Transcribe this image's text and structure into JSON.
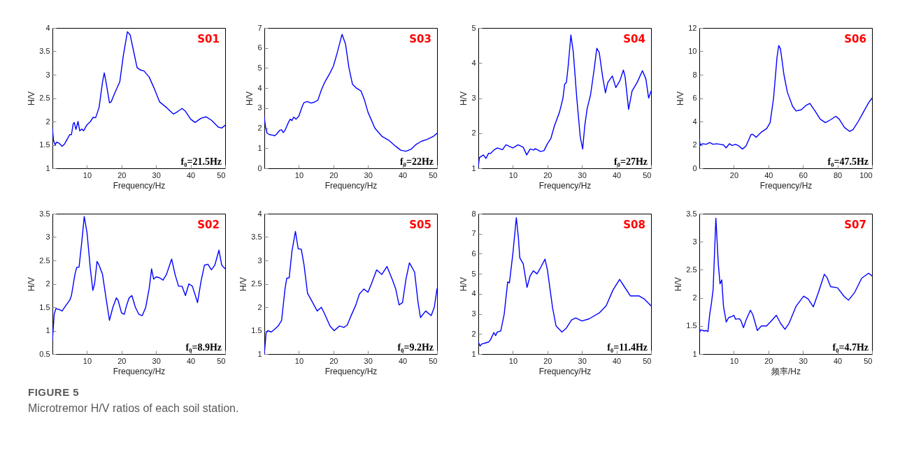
{
  "chart_data": [
    {
      "type": "line",
      "xlabel": "Frequency/Hz",
      "ylabel": "H/V",
      "xlim": [
        0,
        50
      ],
      "xticks": [
        10,
        20,
        30,
        40,
        50
      ],
      "ylim": [
        1,
        4
      ],
      "yticks": [
        1,
        1.5,
        2,
        2.5,
        3,
        3.5,
        4
      ],
      "annotations": [
        "S01",
        "f₀=21.5Hz"
      ],
      "x": [
        0,
        0.3,
        0.8,
        1.2,
        2,
        2.8,
        3.5,
        4.5,
        5,
        5.5,
        6,
        6.3,
        6.8,
        7.4,
        7.9,
        8.5,
        9,
        10,
        11,
        11.8,
        12.5,
        13.5,
        14.5,
        15,
        15.5,
        16.5,
        17,
        18,
        19.5,
        20.5,
        21.7,
        22.5,
        23.5,
        24.5,
        25.5,
        26.5,
        28,
        29.5,
        31,
        33,
        35,
        36,
        37.5,
        38.5,
        40,
        41.3,
        43,
        44.5,
        46,
        48,
        49,
        50
      ],
      "series": [
        {
          "color": "#0000ff",
          "values": [
            1.85,
            1.6,
            1.5,
            1.56,
            1.53,
            1.47,
            1.52,
            1.65,
            1.72,
            1.72,
            1.95,
            1.98,
            1.83,
            2.0,
            1.8,
            1.84,
            1.8,
            1.93,
            2.0,
            2.09,
            2.08,
            2.3,
            2.85,
            3.04,
            2.85,
            2.4,
            2.42,
            2.6,
            2.85,
            3.4,
            3.92,
            3.85,
            3.5,
            3.15,
            3.1,
            3.08,
            2.95,
            2.7,
            2.42,
            2.3,
            2.16,
            2.2,
            2.28,
            2.22,
            2.05,
            1.98,
            2.07,
            2.1,
            2.03,
            1.88,
            1.86,
            1.92
          ]
        }
      ]
    },
    {
      "type": "line",
      "xlabel": "Frequency/Hz",
      "ylabel": "H/V",
      "xlim": [
        0,
        50
      ],
      "xticks": [
        10,
        20,
        30,
        40,
        50
      ],
      "ylim": [
        0,
        7
      ],
      "yticks": [
        0,
        1,
        2,
        3,
        4,
        5,
        6,
        7
      ],
      "annotations": [
        "S03",
        "f₀=22Hz"
      ],
      "x": [
        0,
        0.3,
        0.8,
        1.5,
        2.5,
        3,
        3.5,
        4.5,
        5,
        5.5,
        6,
        7,
        7.5,
        8,
        8.5,
        9.2,
        10,
        11,
        11.5,
        12.5,
        13.5,
        14.5,
        15.5,
        16.5,
        17.5,
        19,
        20,
        21,
        22.5,
        23.5,
        24.5,
        25.5,
        26.5,
        28,
        29,
        30,
        32,
        34,
        36,
        38,
        39.5,
        41,
        42.5,
        44,
        45.5,
        47,
        49,
        50
      ],
      "series": [
        {
          "color": "#0000ff",
          "values": [
            2.55,
            2.1,
            1.75,
            1.68,
            1.65,
            1.62,
            1.7,
            1.9,
            1.92,
            1.78,
            1.9,
            2.3,
            2.45,
            2.38,
            2.55,
            2.45,
            2.6,
            3.1,
            3.28,
            3.33,
            3.25,
            3.3,
            3.4,
            3.9,
            4.3,
            4.75,
            5.1,
            5.7,
            6.68,
            6.2,
            5.0,
            4.2,
            4.02,
            3.85,
            3.4,
            2.8,
            2.0,
            1.6,
            1.4,
            1.1,
            0.9,
            0.85,
            0.95,
            1.2,
            1.35,
            1.43,
            1.6,
            1.75
          ]
        }
      ]
    },
    {
      "type": "line",
      "xlabel": "Frequency/Hz",
      "ylabel": "H/V",
      "xlim": [
        0,
        50
      ],
      "xticks": [
        10,
        20,
        30,
        40,
        50
      ],
      "ylim": [
        1,
        5
      ],
      "yticks": [
        1,
        2,
        3,
        4,
        5
      ],
      "annotations": [
        "S04",
        "f₀=27Hz"
      ],
      "x": [
        0,
        0.3,
        1,
        1.5,
        2.2,
        3,
        3.5,
        4.5,
        5.5,
        7,
        8,
        10,
        11.5,
        13,
        14,
        15,
        16,
        16.5,
        18,
        19,
        20,
        21,
        22,
        23.5,
        24.5,
        25,
        25.5,
        26,
        26.8,
        27.5,
        28.5,
        29.5,
        30.2,
        30.8,
        31.5,
        32.5,
        33.5,
        34.3,
        35,
        36,
        36.8,
        37.5,
        38.8,
        39.8,
        41,
        42,
        42.5,
        43.5,
        44.5,
        46,
        47.5,
        48.5,
        49.3,
        50
      ],
      "series": [
        {
          "color": "#0000ff",
          "values": [
            1.05,
            1.3,
            1.35,
            1.38,
            1.28,
            1.43,
            1.42,
            1.52,
            1.58,
            1.53,
            1.67,
            1.58,
            1.67,
            1.6,
            1.38,
            1.55,
            1.52,
            1.56,
            1.48,
            1.5,
            1.7,
            1.85,
            2.2,
            2.6,
            3.0,
            3.4,
            3.45,
            3.9,
            4.8,
            4.3,
            3.0,
            1.9,
            1.55,
            2.2,
            2.7,
            3.1,
            3.8,
            4.42,
            4.3,
            3.6,
            3.15,
            3.45,
            3.63,
            3.3,
            3.5,
            3.8,
            3.6,
            2.68,
            3.2,
            3.45,
            3.78,
            3.55,
            3.0,
            3.2
          ]
        }
      ]
    },
    {
      "type": "line",
      "xlabel": "Frequency/Hz",
      "ylabel": "H/V",
      "xlim": [
        0,
        100
      ],
      "xticks": [
        20,
        40,
        60,
        80,
        100
      ],
      "ylim": [
        0,
        12
      ],
      "yticks": [
        0,
        2,
        4,
        6,
        8,
        10,
        12
      ],
      "annotations": [
        "S06",
        "f₀=47.5Hz"
      ],
      "x": [
        0,
        0.5,
        2,
        4,
        6,
        8,
        10,
        12,
        14,
        15.5,
        17.5,
        19,
        21,
        23,
        25,
        27,
        30,
        31,
        33,
        36,
        39,
        41,
        43,
        45,
        46,
        47,
        49,
        51,
        54,
        56,
        59,
        62,
        64,
        67,
        70,
        73,
        76,
        79,
        81,
        84,
        87,
        89,
        92,
        95,
        98,
        100
      ],
      "series": [
        {
          "color": "#0000ff",
          "values": [
            2.5,
            2.0,
            2.1,
            2.05,
            2.2,
            2.05,
            2.1,
            2.05,
            2.0,
            1.75,
            2.1,
            1.95,
            2.05,
            1.9,
            1.65,
            1.9,
            2.9,
            2.9,
            2.65,
            3.1,
            3.4,
            3.9,
            6.0,
            9.5,
            10.5,
            10.2,
            8.0,
            6.5,
            5.3,
            4.9,
            5.0,
            5.4,
            5.55,
            4.9,
            4.2,
            3.9,
            4.15,
            4.45,
            4.2,
            3.5,
            3.15,
            3.3,
            4.0,
            4.8,
            5.6,
            6.0
          ]
        }
      ]
    },
    {
      "type": "line",
      "xlabel": "Frequency/Hz",
      "ylabel": "H/V",
      "xlim": [
        0,
        50
      ],
      "xticks": [
        10,
        20,
        30,
        40,
        50
      ],
      "ylim": [
        0.5,
        3.5
      ],
      "yticks": [
        0.5,
        1,
        1.5,
        2,
        2.5,
        3,
        3.5
      ],
      "annotations": [
        "S02",
        "f₀=8.9Hz"
      ],
      "x": [
        0,
        0.5,
        1,
        2,
        2.8,
        4,
        5,
        5.5,
        6.5,
        7,
        7.7,
        8.5,
        9.2,
        10,
        11,
        11.7,
        12.2,
        12.9,
        13.5,
        14.5,
        15.5,
        16.5,
        17.5,
        18.5,
        19,
        20,
        20.8,
        21.5,
        22.2,
        23,
        24,
        25,
        26,
        27,
        28,
        28.7,
        29.3,
        30,
        31,
        32,
        33,
        34.5,
        35.5,
        36.5,
        37.5,
        38.5,
        39.5,
        40.5,
        42,
        43,
        44,
        45,
        46,
        47,
        48.2,
        49,
        50
      ],
      "series": [
        {
          "color": "#0000ff",
          "values": [
            0.8,
            1.35,
            1.47,
            1.45,
            1.42,
            1.55,
            1.65,
            1.75,
            2.2,
            2.35,
            2.36,
            2.9,
            3.44,
            3.1,
            2.3,
            1.86,
            2.0,
            2.48,
            2.4,
            2.2,
            1.7,
            1.22,
            1.5,
            1.7,
            1.65,
            1.38,
            1.35,
            1.55,
            1.7,
            1.75,
            1.5,
            1.35,
            1.32,
            1.5,
            1.9,
            2.32,
            2.1,
            2.15,
            2.13,
            2.08,
            2.2,
            2.53,
            2.2,
            1.95,
            1.95,
            1.75,
            2.0,
            1.95,
            1.6,
            2.05,
            2.4,
            2.42,
            2.3,
            2.4,
            2.72,
            2.4,
            2.32
          ]
        }
      ]
    },
    {
      "type": "line",
      "xlabel": "Frequency/Hz",
      "ylabel": "H/V",
      "xlim": [
        0,
        50
      ],
      "xticks": [
        10,
        20,
        30,
        40,
        50
      ],
      "ylim": [
        1,
        4
      ],
      "yticks": [
        1,
        1.5,
        2,
        2.5,
        3,
        3.5,
        4
      ],
      "annotations": [
        "S05",
        "f₀=9.2Hz"
      ],
      "x": [
        0,
        0.5,
        1,
        2,
        3,
        4,
        5,
        6,
        6.5,
        7.2,
        8,
        9,
        9.8,
        10.7,
        11.5,
        12.5,
        14,
        15.3,
        16.5,
        17.5,
        19,
        20.2,
        21,
        21.8,
        23,
        24,
        25,
        26.5,
        27.5,
        28.8,
        30,
        31,
        32.5,
        34,
        35.5,
        37,
        38,
        39,
        40,
        41,
        42,
        43.5,
        44.5,
        45.2,
        46.7,
        48.3,
        49.2,
        50
      ],
      "series": [
        {
          "color": "#0000ff",
          "values": [
            1.0,
            1.45,
            1.5,
            1.47,
            1.53,
            1.6,
            1.72,
            2.4,
            2.62,
            2.63,
            3.2,
            3.62,
            3.25,
            3.24,
            2.9,
            2.3,
            2.1,
            1.92,
            2.0,
            1.85,
            1.6,
            1.5,
            1.55,
            1.6,
            1.57,
            1.62,
            1.8,
            2.05,
            2.28,
            2.39,
            2.32,
            2.5,
            2.8,
            2.7,
            2.87,
            2.6,
            2.4,
            2.05,
            2.1,
            2.6,
            2.95,
            2.75,
            2.1,
            1.78,
            1.92,
            1.82,
            2.0,
            2.4
          ]
        }
      ]
    },
    {
      "type": "line",
      "xlabel": "Frequency/Hz",
      "ylabel": "H/V",
      "xlim": [
        0,
        50
      ],
      "xticks": [
        10,
        20,
        30,
        40,
        50
      ],
      "ylim": [
        1,
        8
      ],
      "yticks": [
        1,
        2,
        3,
        4,
        5,
        6,
        7,
        8
      ],
      "annotations": [
        "S08",
        "f₀=11.4Hz"
      ],
      "x": [
        0,
        0.5,
        1,
        2,
        3,
        3.5,
        4.5,
        5,
        5.5,
        6.5,
        7.5,
        8.5,
        9,
        10,
        11,
        11.6,
        12,
        13,
        14.1,
        15,
        15.9,
        17,
        18,
        19.3,
        20,
        21.5,
        22.5,
        24.2,
        25.5,
        27,
        28.2,
        30,
        32,
        35,
        37,
        39,
        40.9,
        42.5,
        44,
        46.5,
        48,
        50
      ],
      "series": [
        {
          "color": "#0000ff",
          "values": [
            1.6,
            1.4,
            1.5,
            1.55,
            1.6,
            1.7,
            2.07,
            1.92,
            2.1,
            2.15,
            3.0,
            4.6,
            4.55,
            6.0,
            7.8,
            6.8,
            5.8,
            5.5,
            4.32,
            4.9,
            5.15,
            5.0,
            5.3,
            5.73,
            5.2,
            3.3,
            2.4,
            2.1,
            2.3,
            2.7,
            2.8,
            2.65,
            2.75,
            3.05,
            3.4,
            4.2,
            4.72,
            4.3,
            3.9,
            3.9,
            3.75,
            3.4
          ]
        }
      ]
    },
    {
      "type": "line",
      "xlabel": "频率/Hz",
      "ylabel": "H/V",
      "xlim": [
        0,
        50
      ],
      "xticks": [
        10,
        20,
        30,
        40,
        50
      ],
      "ylim": [
        1,
        3.5
      ],
      "yticks": [
        1,
        1.5,
        2,
        2.5,
        3,
        3.5
      ],
      "annotations": [
        "S07",
        "f₀=4.7Hz"
      ],
      "x": [
        0,
        0.3,
        1,
        1.5,
        2,
        2.5,
        3,
        3.5,
        4,
        4.8,
        5.5,
        6,
        6.5,
        7,
        7.8,
        8.5,
        9.5,
        10,
        10.5,
        11.5,
        12,
        12.8,
        13.5,
        14.8,
        15.5,
        16.8,
        18,
        19.5,
        21,
        22.3,
        23.5,
        24.8,
        26,
        28,
        30.2,
        31.5,
        33,
        34.5,
        36.2,
        37,
        38,
        40,
        42,
        43.2,
        45,
        47,
        49,
        50
      ],
      "series": [
        {
          "color": "#0000ff",
          "values": [
            1.35,
            1.43,
            1.42,
            1.41,
            1.42,
            1.4,
            1.7,
            1.9,
            2.15,
            3.42,
            2.6,
            2.25,
            2.32,
            1.85,
            1.57,
            1.65,
            1.67,
            1.69,
            1.62,
            1.63,
            1.6,
            1.47,
            1.6,
            1.78,
            1.7,
            1.42,
            1.5,
            1.5,
            1.6,
            1.69,
            1.55,
            1.44,
            1.55,
            1.85,
            2.03,
            1.98,
            1.84,
            2.1,
            2.42,
            2.36,
            2.2,
            2.18,
            2.02,
            1.96,
            2.1,
            2.35,
            2.44,
            2.39
          ]
        }
      ]
    },
    {
      "type": "other",
      "title": "FIGURE 5",
      "subtitle": "Microtremor H/V ratios of each soil station."
    }
  ]
}
